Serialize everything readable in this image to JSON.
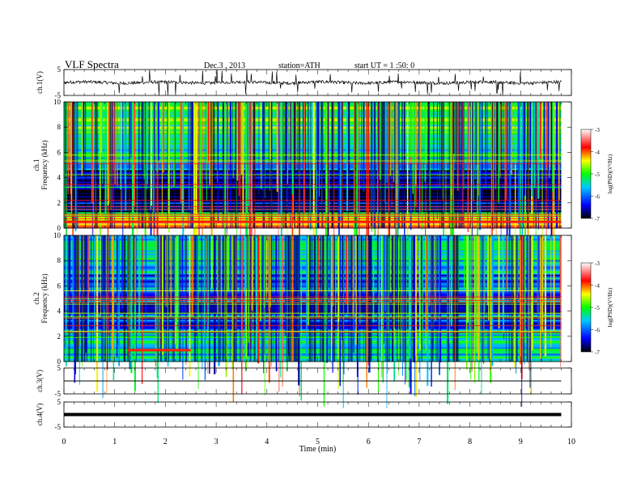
{
  "header": {
    "title": "VLF Spectra",
    "date": "Dec.3 , 2013",
    "station": "station=ATH",
    "start": "start UT = 1 :50: 0"
  },
  "chart_data": [
    {
      "type": "line",
      "panel": "ch1-waveform",
      "ylabel": "ch.1(V)",
      "ylim": [
        -5,
        5
      ],
      "yticks": [
        "5",
        "-5"
      ],
      "description_series": {
        "baseline": 0.0,
        "noise_amplitude": 0.6,
        "spike_count": 45
      },
      "color": "#000000"
    },
    {
      "type": "heatmap",
      "panel": "ch1-spectrogram",
      "ylabel": "ch.1 Frequency (kHz)",
      "ylim": [
        0,
        10
      ],
      "yticks": [
        "0",
        "2",
        "4",
        "6",
        "8",
        "10"
      ],
      "xlim": [
        0,
        9.8
      ],
      "colorbar": {
        "label": "log(PSD)(V²/Hz)",
        "ticks": [
          "-3",
          "-4",
          "-5",
          "-6",
          "-7"
        ],
        "range": [
          -7,
          -3
        ]
      },
      "bands": [
        {
          "from": 0,
          "to": 0.5,
          "level": -3.8
        },
        {
          "from": 0.5,
          "to": 1.2,
          "level": -4.6
        },
        {
          "from": 1.2,
          "to": 4.5,
          "level": -6.6
        },
        {
          "from": 4.5,
          "to": 7,
          "level": -5.6
        },
        {
          "from": 7,
          "to": 10,
          "level": -5.0
        }
      ]
    },
    {
      "type": "heatmap",
      "panel": "ch2-spectrogram",
      "ylabel": "ch.2 Frequency (kHz)",
      "ylim": [
        0,
        10
      ],
      "yticks": [
        "0",
        "2",
        "4",
        "6",
        "8",
        "10"
      ],
      "xlim": [
        0,
        9.8
      ],
      "colorbar": {
        "label": "log(PSD)(V²/Hz)",
        "ticks": [
          "-3",
          "-4",
          "-5",
          "-6",
          "-7"
        ],
        "range": [
          -7,
          -3
        ]
      },
      "bands": [
        {
          "from": 0,
          "to": 0.5,
          "level": -5.2
        },
        {
          "from": 0.5,
          "to": 2.2,
          "level": -5.4
        },
        {
          "from": 2.2,
          "to": 5,
          "level": -6.2
        },
        {
          "from": 5,
          "to": 7,
          "level": -5.9
        },
        {
          "from": 7,
          "to": 10,
          "level": -5.6
        }
      ]
    },
    {
      "type": "line",
      "panel": "ch3-waveform",
      "ylabel": "ch.3(V)",
      "ylim": [
        -5,
        5
      ],
      "yticks": [
        "5",
        "-5"
      ],
      "values_constant": 0.0
    },
    {
      "type": "line",
      "panel": "ch4-waveform",
      "ylabel": "ch.4(V)",
      "ylim": [
        -5,
        5
      ],
      "yticks": [
        "5",
        "-5"
      ],
      "values_constant": 0.0
    }
  ],
  "xaxis": {
    "label": "Time (min)",
    "range": [
      0,
      10
    ],
    "ticks": [
      "0",
      "1",
      "2",
      "3",
      "4",
      "5",
      "6",
      "7",
      "8",
      "9",
      "10"
    ]
  },
  "colors": {
    "colormap": [
      "#000000",
      "#0000ff",
      "#00ffff",
      "#00ff00",
      "#ffff00",
      "#ff0000",
      "#ffffff"
    ]
  }
}
